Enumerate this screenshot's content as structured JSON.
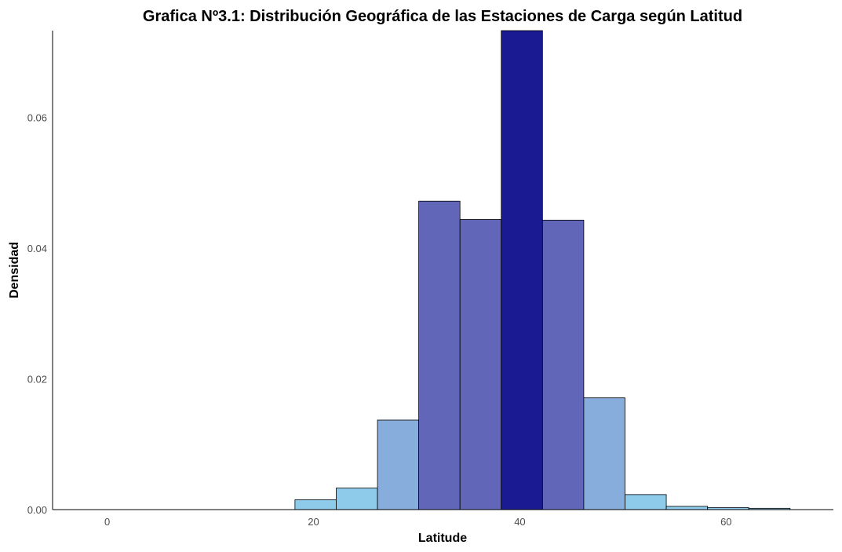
{
  "chart_data": {
    "type": "bar",
    "title": "Grafica Nº3.1: Distribución Geográfica de las Estaciones de Carga según Latitud",
    "xlabel": "Latitude",
    "ylabel": "Densidad",
    "xlim": [
      -5.3,
      70.4
    ],
    "ylim": [
      0,
      0.0733
    ],
    "x_ticks": [
      0,
      20,
      40,
      60
    ],
    "y_ticks": [
      0.0,
      0.02,
      0.04,
      0.06
    ],
    "x_tick_labels": [
      "0",
      "20",
      "40",
      "60"
    ],
    "y_tick_labels": [
      "0.00",
      "0.02",
      "0.04",
      "0.06"
    ],
    "bin_width": 4,
    "bins": [
      {
        "start": 18.2,
        "end": 22.2,
        "value": 0.0015,
        "color": "#8ecbea"
      },
      {
        "start": 22.2,
        "end": 26.2,
        "value": 0.0033,
        "color": "#8ecbea"
      },
      {
        "start": 26.2,
        "end": 30.2,
        "value": 0.0137,
        "color": "#87addc"
      },
      {
        "start": 30.2,
        "end": 34.2,
        "value": 0.0472,
        "color": "#6166b9"
      },
      {
        "start": 34.2,
        "end": 38.2,
        "value": 0.0444,
        "color": "#6166b9"
      },
      {
        "start": 38.2,
        "end": 42.2,
        "value": 0.0733,
        "color": "#1a1a93"
      },
      {
        "start": 42.2,
        "end": 46.2,
        "value": 0.0443,
        "color": "#6166b9"
      },
      {
        "start": 46.2,
        "end": 50.2,
        "value": 0.0171,
        "color": "#87addc"
      },
      {
        "start": 50.2,
        "end": 54.2,
        "value": 0.0023,
        "color": "#8ecbea"
      },
      {
        "start": 54.2,
        "end": 58.2,
        "value": 0.0005,
        "color": "#8ecbea"
      },
      {
        "start": 58.2,
        "end": 62.2,
        "value": 0.0003,
        "color": "#8ecbea"
      },
      {
        "start": 62.2,
        "end": 66.2,
        "value": 0.0002,
        "color": "#8ecbea"
      }
    ],
    "grid": false,
    "legend": "none"
  }
}
